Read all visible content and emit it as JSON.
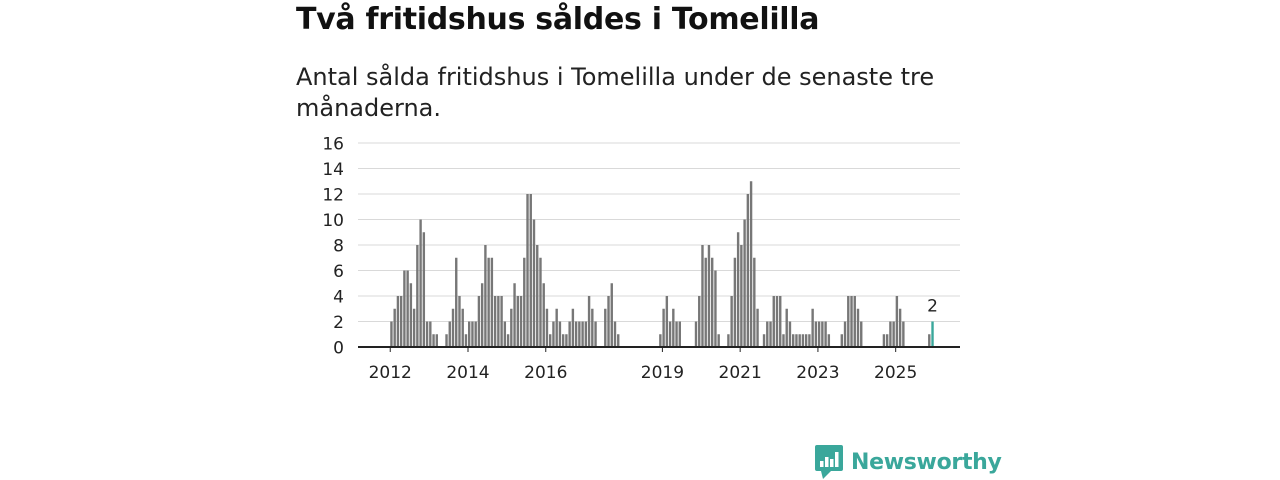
{
  "title": "Två fritidshus såldes i Tomelilla",
  "subtitle": "Antal sålda fritidshus i Tomelilla under de senaste tre månaderna.",
  "brand": {
    "name": "Newsworthy",
    "color": "#3aa79b",
    "icon": "bar-chart-logo-icon"
  },
  "chart_data": {
    "type": "bar",
    "title": "Två fritidshus såldes i Tomelilla",
    "xlabel": "",
    "ylabel": "",
    "ylim": [
      0,
      16
    ],
    "yticks": [
      "0",
      "2",
      "4",
      "6",
      "8",
      "10",
      "12",
      "14",
      "16"
    ],
    "year_labels": [
      {
        "label": "2012",
        "index": 1
      },
      {
        "label": "2014",
        "index": 25
      },
      {
        "label": "2016",
        "index": 49
      },
      {
        "label": "2019",
        "index": 85
      },
      {
        "label": "2021",
        "index": 109
      },
      {
        "label": "2023",
        "index": 133
      },
      {
        "label": "2025",
        "index": 157
      }
    ],
    "bar_color": "#777777",
    "highlight_color": "#3aa79b",
    "highlight_index": 168,
    "highlight_label": "2",
    "values": [
      0,
      2,
      3,
      4,
      4,
      6,
      6,
      5,
      3,
      8,
      10,
      9,
      2,
      2,
      1,
      1,
      0,
      0,
      1,
      2,
      3,
      7,
      4,
      3,
      1,
      2,
      2,
      2,
      4,
      5,
      8,
      7,
      7,
      4,
      4,
      4,
      2,
      1,
      3,
      5,
      4,
      4,
      7,
      12,
      12,
      10,
      8,
      7,
      5,
      3,
      1,
      2,
      3,
      2,
      1,
      1,
      2,
      3,
      2,
      2,
      2,
      2,
      4,
      3,
      2,
      0,
      0,
      3,
      4,
      5,
      2,
      1,
      0,
      0,
      0,
      0,
      0,
      0,
      0,
      0,
      0,
      0,
      0,
      0,
      1,
      3,
      4,
      2,
      3,
      2,
      2,
      0,
      0,
      0,
      0,
      2,
      4,
      8,
      7,
      8,
      7,
      6,
      1,
      0,
      0,
      1,
      4,
      7,
      9,
      8,
      10,
      12,
      13,
      7,
      3,
      0,
      1,
      2,
      2,
      4,
      4,
      4,
      1,
      3,
      2,
      1,
      1,
      1,
      1,
      1,
      1,
      3,
      2,
      2,
      2,
      2,
      1,
      0,
      0,
      0,
      1,
      2,
      4,
      4,
      4,
      3,
      2,
      0,
      0,
      0,
      0,
      0,
      0,
      1,
      1,
      2,
      2,
      4,
      3,
      2,
      0,
      0,
      0,
      0,
      0,
      0,
      0,
      1,
      2
    ]
  }
}
